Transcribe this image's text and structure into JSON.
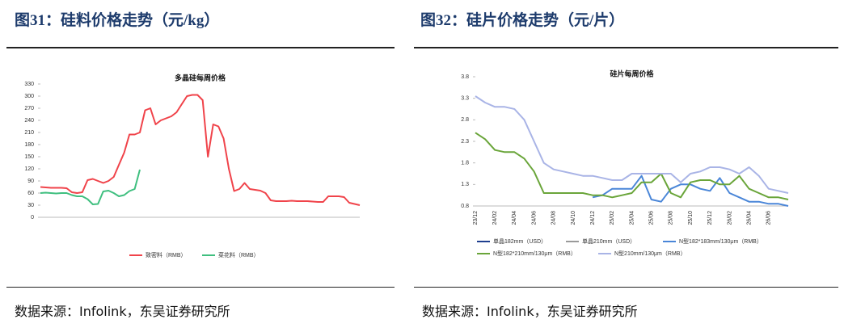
{
  "captions": [
    "图31：硅料价格走势（元/kg）",
    "图32：硅片价格走势（元/片）"
  ],
  "sources": [
    "数据来源：Infolink，东吴证券研究所",
    "数据来源：Infolink，东吴证券研究所"
  ],
  "chart_data": [
    {
      "type": "line",
      "title": "多晶硅每周价格",
      "categories": [
        null,
        null,
        null,
        null,
        null,
        null,
        null,
        null,
        null,
        null,
        null,
        null,
        null,
        null,
        null,
        null,
        null,
        null,
        null,
        null,
        null,
        null,
        null,
        null,
        null,
        null,
        null,
        null,
        null,
        null,
        null,
        null,
        null,
        null,
        null,
        null,
        null,
        null,
        null,
        null,
        null,
        null,
        null,
        null,
        null,
        null,
        null,
        null,
        null,
        null,
        null,
        null,
        null,
        null,
        null,
        null,
        null,
        null,
        null,
        null,
        null,
        null
      ],
      "ylim": [
        0,
        330
      ],
      "yticks": [
        0,
        30,
        60,
        90,
        120,
        150,
        180,
        210,
        240,
        270,
        300,
        330
      ],
      "series": [
        {
          "name": "致密料（RMB）",
          "color": "#f0434a",
          "values": [
            75,
            74,
            73,
            73,
            73,
            72,
            62,
            60,
            62,
            92,
            95,
            90,
            85,
            90,
            100,
            130,
            160,
            205,
            205,
            210,
            265,
            270,
            230,
            240,
            245,
            250,
            260,
            280,
            300,
            303,
            303,
            290,
            150,
            230,
            225,
            195,
            120,
            65,
            70,
            85,
            70,
            68,
            66,
            60,
            42,
            40,
            40,
            40,
            41,
            40,
            40,
            40,
            39,
            38,
            38,
            52,
            52,
            52,
            50,
            36,
            33,
            30
          ]
        },
        {
          "name": "菜花料（RMB）",
          "color": "#3fbf7f",
          "values": [
            60,
            61,
            60,
            59,
            60,
            60,
            55,
            52,
            52,
            45,
            32,
            33,
            64,
            66,
            60,
            52,
            55,
            65,
            70,
            118,
            null,
            null,
            null,
            null,
            null,
            null,
            null,
            null,
            null,
            null,
            null,
            null,
            null,
            null,
            null,
            null,
            null,
            null,
            null,
            null,
            null,
            null,
            null,
            null,
            null,
            null,
            null,
            null,
            null,
            null,
            null,
            null,
            null,
            null,
            null,
            null,
            null,
            null,
            null,
            null,
            null,
            null
          ]
        }
      ]
    },
    {
      "type": "line",
      "title": "硅片每周价格",
      "categories": [
        "23/12",
        null,
        "24/02",
        null,
        "24/04",
        null,
        "24/06",
        null,
        "24/08",
        null,
        "24/10",
        null,
        "24/12",
        null,
        "25/02",
        null,
        "25/04",
        null,
        "25/06",
        null,
        "25/08",
        null,
        "25/10",
        null,
        "25/12",
        null,
        "26/02",
        null,
        "26/04",
        null,
        "26/06",
        null,
        null
      ],
      "ylim": [
        0.8,
        3.8
      ],
      "yticks": [
        0.8,
        1.3,
        1.8,
        2.3,
        2.8,
        3.3,
        3.8
      ],
      "series": [
        {
          "name": "单晶182mm（USD）",
          "color": "#1f3f8f",
          "values": [
            null,
            null,
            null,
            null,
            null,
            null,
            null,
            null,
            null,
            null,
            null,
            null,
            null,
            null,
            null,
            null,
            null,
            null,
            null,
            null,
            null,
            null,
            null,
            null,
            null,
            null,
            null,
            null,
            null,
            null,
            null,
            null,
            null
          ]
        },
        {
          "name": "单晶210mm（USD）",
          "color": "#9a9a9a",
          "values": [
            null,
            null,
            null,
            null,
            null,
            null,
            null,
            null,
            null,
            null,
            null,
            null,
            null,
            null,
            null,
            null,
            null,
            null,
            null,
            null,
            null,
            null,
            null,
            null,
            null,
            null,
            null,
            null,
            null,
            null,
            null,
            null,
            null
          ]
        },
        {
          "name": "N型182*183mm/130μm（RMB）",
          "color": "#4a86d8",
          "values": [
            null,
            null,
            null,
            null,
            null,
            null,
            null,
            null,
            null,
            null,
            null,
            null,
            1.0,
            1.05,
            1.2,
            1.2,
            1.2,
            1.5,
            0.95,
            0.9,
            1.2,
            1.3,
            1.3,
            1.2,
            1.15,
            1.45,
            1.1,
            1.0,
            0.9,
            0.9,
            0.85,
            0.85,
            0.8
          ]
        },
        {
          "name": "N型182*210mm/130μm（RMB）",
          "color": "#6aa53a",
          "values": [
            2.5,
            2.35,
            2.1,
            2.05,
            2.05,
            1.9,
            1.6,
            1.1,
            1.1,
            1.1,
            1.1,
            1.1,
            1.05,
            1.05,
            1.0,
            1.05,
            1.1,
            1.35,
            1.35,
            1.55,
            1.1,
            1.0,
            1.35,
            1.4,
            1.4,
            1.3,
            1.3,
            1.5,
            1.2,
            1.1,
            1.0,
            1.0,
            0.95
          ]
        },
        {
          "name": "N型210mm/130μm（RMB）",
          "color": "#a9b4e6",
          "values": [
            3.35,
            3.2,
            3.1,
            3.1,
            3.05,
            2.8,
            2.3,
            1.8,
            1.65,
            1.6,
            1.55,
            1.5,
            1.5,
            1.45,
            1.4,
            1.4,
            1.55,
            1.55,
            1.55,
            1.55,
            1.55,
            1.35,
            1.55,
            1.6,
            1.7,
            1.7,
            1.65,
            1.55,
            1.7,
            1.5,
            1.2,
            1.15,
            1.1
          ]
        }
      ]
    }
  ]
}
